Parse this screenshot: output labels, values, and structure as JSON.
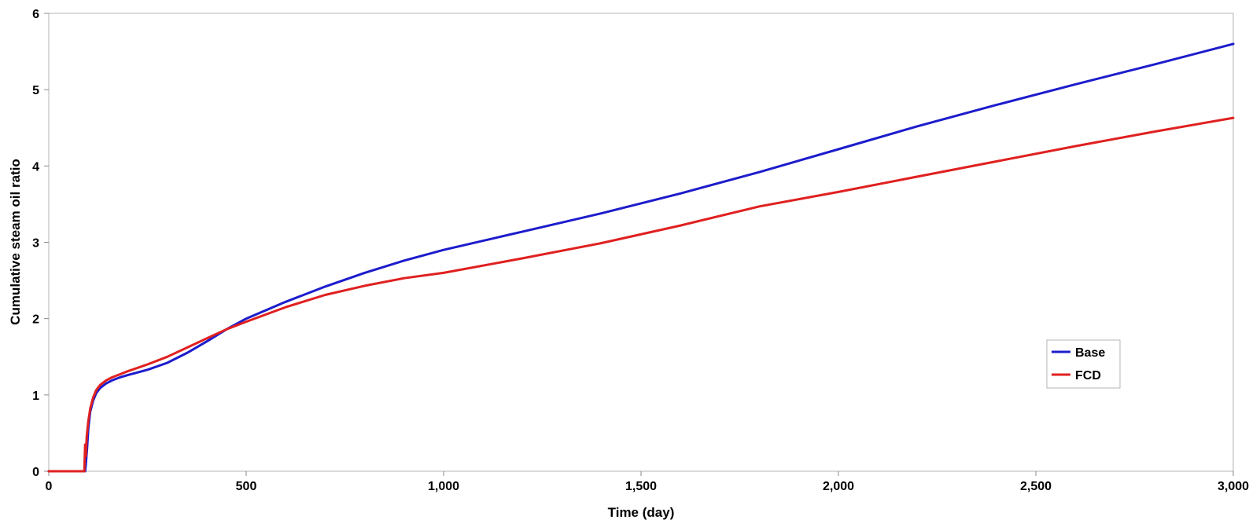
{
  "chart_data": {
    "type": "line",
    "title": "",
    "xlabel": "Time (day)",
    "ylabel": "Cumulative steam oil ratio",
    "xlim": [
      0,
      3000
    ],
    "ylim": [
      0,
      6
    ],
    "x_ticks": [
      0,
      500,
      1000,
      1500,
      2000,
      2500,
      3000
    ],
    "x_tick_labels": [
      "0",
      "500",
      "1,000",
      "1,500",
      "2,000",
      "2,500",
      "3,000"
    ],
    "y_ticks": [
      0,
      1,
      2,
      3,
      4,
      5,
      6
    ],
    "y_tick_labels": [
      "0",
      "1",
      "2",
      "3",
      "4",
      "5",
      "6"
    ],
    "grid": false,
    "legend_position": "right",
    "series": [
      {
        "name": "Base",
        "color": "#1c1ccc",
        "points": [
          [
            0,
            0
          ],
          [
            92,
            0
          ],
          [
            94,
            0.1
          ],
          [
            97,
            0.3
          ],
          [
            100,
            0.55
          ],
          [
            105,
            0.78
          ],
          [
            112,
            0.92
          ],
          [
            120,
            1.02
          ],
          [
            130,
            1.09
          ],
          [
            145,
            1.15
          ],
          [
            160,
            1.19
          ],
          [
            180,
            1.23
          ],
          [
            200,
            1.26
          ],
          [
            250,
            1.33
          ],
          [
            300,
            1.42
          ],
          [
            350,
            1.55
          ],
          [
            400,
            1.7
          ],
          [
            450,
            1.86
          ],
          [
            500,
            2.0
          ],
          [
            600,
            2.22
          ],
          [
            700,
            2.42
          ],
          [
            800,
            2.6
          ],
          [
            900,
            2.76
          ],
          [
            1000,
            2.9
          ],
          [
            1200,
            3.14
          ],
          [
            1400,
            3.38
          ],
          [
            1600,
            3.64
          ],
          [
            1800,
            3.92
          ],
          [
            2000,
            4.22
          ],
          [
            2200,
            4.52
          ],
          [
            2400,
            4.8
          ],
          [
            2600,
            5.07
          ],
          [
            2800,
            5.33
          ],
          [
            3000,
            5.6
          ]
        ]
      },
      {
        "name": "FCD",
        "color": "#e02020",
        "points": [
          [
            0,
            0
          ],
          [
            90,
            0
          ],
          [
            92,
            0.35
          ],
          [
            94,
            0.2
          ],
          [
            96,
            0.45
          ],
          [
            100,
            0.65
          ],
          [
            105,
            0.82
          ],
          [
            112,
            0.96
          ],
          [
            120,
            1.06
          ],
          [
            130,
            1.13
          ],
          [
            145,
            1.19
          ],
          [
            160,
            1.23
          ],
          [
            180,
            1.27
          ],
          [
            200,
            1.31
          ],
          [
            250,
            1.4
          ],
          [
            300,
            1.5
          ],
          [
            350,
            1.62
          ],
          [
            400,
            1.74
          ],
          [
            450,
            1.86
          ],
          [
            500,
            1.96
          ],
          [
            600,
            2.15
          ],
          [
            700,
            2.31
          ],
          [
            800,
            2.43
          ],
          [
            900,
            2.53
          ],
          [
            1000,
            2.6
          ],
          [
            1200,
            2.79
          ],
          [
            1400,
            2.99
          ],
          [
            1600,
            3.22
          ],
          [
            1800,
            3.47
          ],
          [
            2000,
            3.66
          ],
          [
            2200,
            3.86
          ],
          [
            2400,
            4.06
          ],
          [
            2600,
            4.26
          ],
          [
            2800,
            4.45
          ],
          [
            3000,
            4.63
          ]
        ]
      }
    ]
  }
}
